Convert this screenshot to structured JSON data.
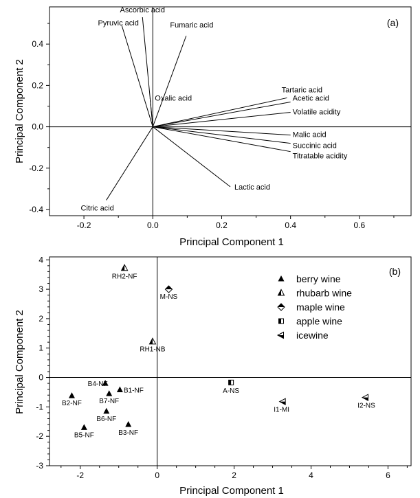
{
  "chart_data": [
    {
      "type": "biplot-loadings",
      "panel": "(a)",
      "xlabel": "Principal Component 1",
      "ylabel": "Principal Component 2",
      "xlim": [
        -0.3,
        0.75
      ],
      "ylim": [
        -0.43,
        0.58
      ],
      "xticks": [
        -0.2,
        0.0,
        0.2,
        0.4,
        0.6
      ],
      "xtick_labels": [
        "-0.2",
        "0.0",
        "0.2",
        "0.4",
        "0.6"
      ],
      "yticks": [
        -0.4,
        -0.2,
        0.0,
        0.2,
        0.4
      ],
      "ytick_labels": [
        "-0.4",
        "-0.2",
        "0.0",
        "0.2",
        "0.4"
      ],
      "vectors": [
        {
          "name": "Ascorbic acid",
          "x": -0.03,
          "y": 0.53
        },
        {
          "name": "Pyruvic acid",
          "x": -0.09,
          "y": 0.49
        },
        {
          "name": "Fumaric acid",
          "x": 0.097,
          "y": 0.44
        },
        {
          "name": "Oxalic acid",
          "x": -0.008,
          "y": 0.14
        },
        {
          "name": "Tartaric acid",
          "x": 0.39,
          "y": 0.14
        },
        {
          "name": "Acetic acid",
          "x": 0.4,
          "y": 0.12
        },
        {
          "name": "Volatile acidity",
          "x": 0.4,
          "y": 0.07
        },
        {
          "name": "Malic acid",
          "x": 0.4,
          "y": -0.04
        },
        {
          "name": "Succinic acid",
          "x": 0.4,
          "y": -0.08
        },
        {
          "name": "Titratable acidity",
          "x": 0.4,
          "y": -0.12
        },
        {
          "name": "Lactic acid",
          "x": 0.225,
          "y": -0.29
        },
        {
          "name": "Citric acid",
          "x": -0.135,
          "y": -0.355
        }
      ]
    },
    {
      "type": "scatter",
      "panel": "(b)",
      "xlabel": "Principal Component 1",
      "ylabel": "Principal Component 2",
      "xlim": [
        -2.8,
        6.6
      ],
      "ylim": [
        -3.0,
        4.1
      ],
      "xticks": [
        -2,
        0,
        2,
        4,
        6
      ],
      "xtick_labels": [
        "-2",
        "0",
        "2",
        "4",
        "6"
      ],
      "yticks": [
        -3,
        -2,
        -1,
        0,
        1,
        2,
        3,
        4
      ],
      "ytick_labels": [
        "-3",
        "-2",
        "-1",
        "0",
        "1",
        "2",
        "3",
        "4"
      ],
      "legend": [
        {
          "name": "berry wine",
          "marker": "triangle-up"
        },
        {
          "name": "rhubarb wine",
          "marker": "triangle-half"
        },
        {
          "name": "maple wine",
          "marker": "diamond-half"
        },
        {
          "name": "apple wine",
          "marker": "square-half"
        },
        {
          "name": "icewine",
          "marker": "triangle-left"
        }
      ],
      "points": [
        {
          "label": "RH2-NF",
          "x": -0.85,
          "y": 3.72,
          "series": "rhubarb wine"
        },
        {
          "label": "M-NS",
          "x": 0.3,
          "y": 3.0,
          "series": "maple wine"
        },
        {
          "label": "RH1-NB",
          "x": -0.12,
          "y": 1.22,
          "series": "rhubarb wine"
        },
        {
          "label": "A-NS",
          "x": 1.92,
          "y": -0.17,
          "series": "apple wine"
        },
        {
          "label": "I1-MI",
          "x": 3.27,
          "y": -0.82,
          "series": "icewine"
        },
        {
          "label": "I2-NS",
          "x": 5.42,
          "y": -0.68,
          "series": "icewine"
        },
        {
          "label": "B4-NF",
          "x": -1.35,
          "y": -0.2,
          "series": "berry wine"
        },
        {
          "label": "B1-NF",
          "x": -0.97,
          "y": -0.42,
          "series": "berry wine"
        },
        {
          "label": "B2-NF",
          "x": -2.22,
          "y": -0.62,
          "series": "berry wine"
        },
        {
          "label": "B7-NF",
          "x": -1.25,
          "y": -0.55,
          "series": "berry wine"
        },
        {
          "label": "B6-NF",
          "x": -1.32,
          "y": -1.15,
          "series": "berry wine"
        },
        {
          "label": "B5-NF",
          "x": -1.9,
          "y": -1.7,
          "series": "berry wine"
        },
        {
          "label": "B3-NF",
          "x": -0.75,
          "y": -1.6,
          "series": "berry wine"
        }
      ]
    }
  ]
}
